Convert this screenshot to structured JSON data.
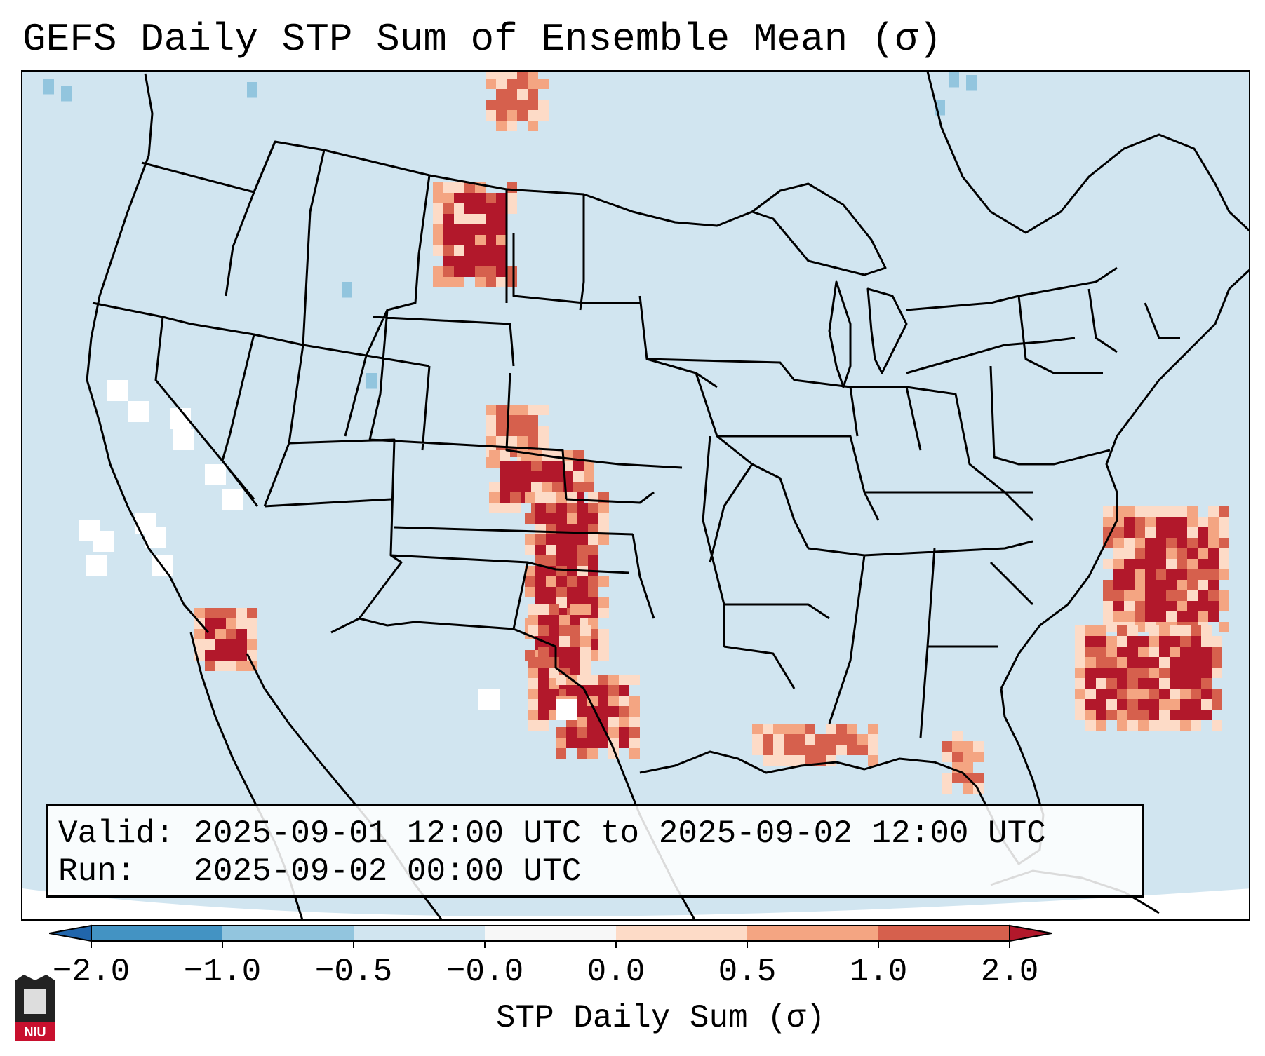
{
  "title": "GEFS Daily STP Sum of Ensemble Mean (σ)",
  "info": {
    "valid_label": "Valid:",
    "valid_value": "2025-09-01 12:00 UTC to 2025-09-02 12:00 UTC",
    "run_label": "Run:",
    "run_value": "2025-09-02 00:00 UTC"
  },
  "colorbar": {
    "title": "STP Daily Sum (σ)",
    "tick_labels": [
      "−2.0",
      "−1.0",
      "−0.5",
      "−0.0",
      "0.0",
      "0.5",
      "1.0",
      "2.0"
    ],
    "bins": [
      {
        "color": "#2166ac"
      },
      {
        "color": "#4393c3"
      },
      {
        "color": "#92c5de"
      },
      {
        "color": "#d1e5f0"
      },
      {
        "color": "#f7f7f7"
      },
      {
        "color": "#fddbc7"
      },
      {
        "color": "#f4a582"
      },
      {
        "color": "#d6604d"
      },
      {
        "color": "#b2182b"
      }
    ]
  },
  "map": {
    "background_color": "#d1e5f0",
    "anomaly_regions": [
      {
        "name": "western-south-dakota",
        "level": 2.0
      },
      {
        "name": "oklahoma-north-texas",
        "level": 2.0
      },
      {
        "name": "southwest-kansas",
        "level": 1.0
      },
      {
        "name": "east-texas-louisiana",
        "level": 2.0
      },
      {
        "name": "northern-gulf-of-mexico",
        "level": 1.0
      },
      {
        "name": "western-atlantic",
        "level": 2.0
      },
      {
        "name": "lower-colorado-river",
        "level": 2.0
      },
      {
        "name": "north-dakota-canada-border",
        "level": 1.0
      },
      {
        "name": "eastern-pacific-offshore",
        "level": -0.1
      }
    ]
  },
  "logo": {
    "text": "NIU"
  }
}
